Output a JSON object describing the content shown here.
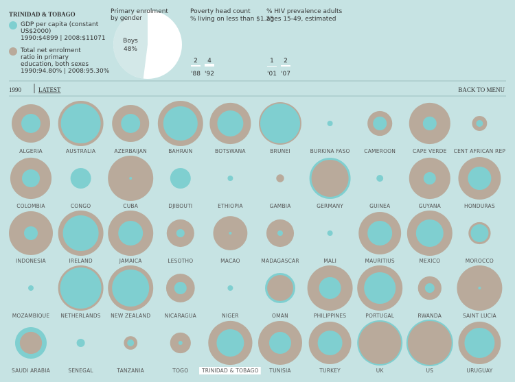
{
  "header": {
    "title": "TRINIDAD & TOBAGO",
    "legend": [
      {
        "label": "GDP per capita (constant US$2000)",
        "detail": "1990:$4899 | 2008:$11071",
        "color": "#7fcfd0"
      },
      {
        "label": "Total net enrolment ratio in primary education, both sexes",
        "detail": "1990:94.80% | 2008:95.30%",
        "color": "#b9aa9b"
      }
    ],
    "pie": {
      "title": "Primary enrolment by gender",
      "label": "Boys",
      "value": 48,
      "value_label": "48%"
    },
    "poverty": {
      "title": "Poverty head count",
      "subtitle": "% living on less than $1.25",
      "values": [
        2,
        4
      ],
      "years": [
        "'88",
        "'92"
      ]
    },
    "hiv": {
      "title": "% HIV prevalence adults",
      "subtitle": "ages 15-49, estimated",
      "values": [
        1,
        2
      ],
      "years": [
        "'01",
        "'07"
      ]
    }
  },
  "nav": {
    "year": "1990",
    "latest": "LATEST",
    "back": "BACK TO MENU"
  },
  "countries": [
    {
      "name": "ALGERIA",
      "gdp": 2400,
      "enrolment": 72
    },
    {
      "name": "AUSTRALIA",
      "gdp": 10300,
      "enrolment": 100
    },
    {
      "name": "AZERBAIJAN",
      "gdp": 2400,
      "enrolment": 67
    },
    {
      "name": "BAHRAIN",
      "gdp": 7655,
      "enrolment": 100
    },
    {
      "name": "BOTSWANA",
      "gdp": 4421,
      "enrolment": 83
    },
    {
      "name": "BRUNEI",
      "gdp": 10300,
      "enrolment": 88
    },
    {
      "name": "BURKINA FASO",
      "gdp": 196,
      "enrolment": null
    },
    {
      "name": "CAMEROON",
      "gdp": 1225,
      "enrolment": 30
    },
    {
      "name": "CAPE VERDE",
      "gdp": 1225,
      "enrolment": 83
    },
    {
      "name": "CENT AFRICAN REP",
      "gdp": 306,
      "enrolment": 11
    },
    {
      "name": "COLOMBIA",
      "gdp": 2070,
      "enrolment": 83
    },
    {
      "name": "CONGO",
      "gdp": 2756,
      "enrolment": null
    },
    {
      "name": "CUBA",
      "gdp": 49,
      "enrolment": 100
    },
    {
      "name": "DJIBOUTI",
      "gdp": 2756,
      "enrolment": null
    },
    {
      "name": "ETHIOPIA",
      "gdp": 196,
      "enrolment": null
    },
    {
      "name": "GAMBIA",
      "gdp": null,
      "enrolment": 3
    },
    {
      "name": "GERMANY",
      "gdp": 11023,
      "enrolment": 67
    },
    {
      "name": "GUINEA",
      "gdp": 306,
      "enrolment": null
    },
    {
      "name": "GUYANA",
      "gdp": 992,
      "enrolment": 83
    },
    {
      "name": "HONDURAS",
      "gdp": 3540,
      "enrolment": 88
    },
    {
      "name": "INDONESIA",
      "gdp": 1225,
      "enrolment": 94
    },
    {
      "name": "IRELAND",
      "gdp": 8280,
      "enrolment": 100
    },
    {
      "name": "JAMAICA",
      "gdp": 3968,
      "enrolment": 100
    },
    {
      "name": "LESOTHO",
      "gdp": 441,
      "enrolment": 37
    },
    {
      "name": "MACAO",
      "gdp": 49,
      "enrolment": 57
    },
    {
      "name": "MADAGASCAR",
      "gdp": 196,
      "enrolment": 37
    },
    {
      "name": "MALI",
      "gdp": 196,
      "enrolment": null
    },
    {
      "name": "MAURITIUS",
      "gdp": 3968,
      "enrolment": 88
    },
    {
      "name": "MEXICO",
      "gdp": 4899,
      "enrolment": 100
    },
    {
      "name": "MOROCCO",
      "gdp": 2070,
      "enrolment": 24
    },
    {
      "name": "MOZAMBIQUE",
      "gdp": 196,
      "enrolment": null
    },
    {
      "name": "NETHERLANDS",
      "gdp": 11023,
      "enrolment": 100
    },
    {
      "name": "NEW ZEALAND",
      "gdp": 8928,
      "enrolment": 100
    },
    {
      "name": "NICARAGUA",
      "gdp": 992,
      "enrolment": 40
    },
    {
      "name": "NIGER",
      "gdp": 196,
      "enrolment": null
    },
    {
      "name": "OMAN",
      "gdp": 5928,
      "enrolment": 33
    },
    {
      "name": "PHILIPPINES",
      "gdp": 3135,
      "enrolment": 100
    },
    {
      "name": "PORTUGAL",
      "gdp": 6479,
      "enrolment": 100
    },
    {
      "name": "RWANDA",
      "gdp": 600,
      "enrolment": 27
    },
    {
      "name": "SAINT LUCIA",
      "gdp": 49,
      "enrolment": 100
    },
    {
      "name": "SAUDI ARABIA",
      "gdp": 6479,
      "enrolment": 24
    },
    {
      "name": "SENEGAL",
      "gdp": 441,
      "enrolment": null
    },
    {
      "name": "TANZANIA",
      "gdp": 306,
      "enrolment": 9
    },
    {
      "name": "TOGO",
      "gdp": 110,
      "enrolment": 21
    },
    {
      "name": "TRINIDAD & TOBAGO",
      "gdp": 4899,
      "enrolment": 94.8
    },
    {
      "name": "TUNISIA",
      "gdp": 3135,
      "enrolment": 94
    },
    {
      "name": "TURKEY",
      "gdp": 3968,
      "enrolment": 88
    },
    {
      "name": "UK",
      "gdp": 13338,
      "enrolment": 88
    },
    {
      "name": "US",
      "gdp": 14158,
      "enrolment": 94
    },
    {
      "name": "URUGUAY",
      "gdp": 5928,
      "enrolment": 88
    }
  ]
}
